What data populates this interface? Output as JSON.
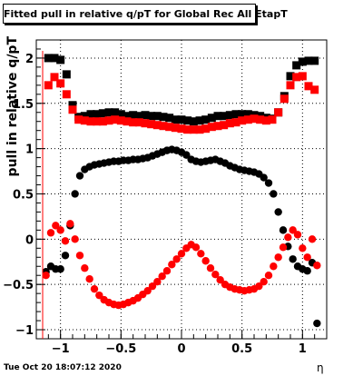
{
  "title": "Fitted pull in relative q/pT  for Global Rec All EtapT",
  "footer": "Tue Oct 20 18:07:12 2020",
  "chart_data": {
    "type": "scatter",
    "xlabel": "η",
    "ylabel": "pull in relative q/pT",
    "xlim": [
      -1.2,
      1.2
    ],
    "ylim": [
      -1.1,
      2.2
    ],
    "x_ticks": [
      -1,
      -0.5,
      0,
      0.5,
      1
    ],
    "x_tick_labels": [
      "−1",
      "−0.5",
      "0",
      "0.5",
      "1"
    ],
    "y_ticks": [
      -1,
      -0.5,
      0,
      0.5,
      1,
      1.5,
      2
    ],
    "y_tick_labels": [
      "−1",
      "−0.5",
      "0",
      "0.5",
      "1",
      "1.5",
      "2"
    ],
    "grid": true,
    "series": [
      {
        "marker": "square",
        "color": "#000000",
        "x": [
          -1.1,
          -1.05,
          -1.0,
          -0.95,
          -0.9,
          -0.85,
          -0.8,
          -0.75,
          -0.7,
          -0.65,
          -0.6,
          -0.55,
          -0.5,
          -0.45,
          -0.4,
          -0.35,
          -0.3,
          -0.25,
          -0.2,
          -0.15,
          -0.1,
          -0.05,
          0.0,
          0.05,
          0.1,
          0.15,
          0.2,
          0.25,
          0.3,
          0.35,
          0.4,
          0.45,
          0.5,
          0.55,
          0.6,
          0.65,
          0.7,
          0.75,
          0.8,
          0.85,
          0.9,
          0.95,
          1.0,
          1.05,
          1.1
        ],
        "y": [
          2.0,
          2.0,
          1.98,
          1.82,
          1.48,
          1.35,
          1.36,
          1.38,
          1.38,
          1.39,
          1.4,
          1.4,
          1.38,
          1.36,
          1.37,
          1.36,
          1.37,
          1.36,
          1.36,
          1.35,
          1.34,
          1.32,
          1.32,
          1.31,
          1.3,
          1.31,
          1.32,
          1.34,
          1.36,
          1.36,
          1.37,
          1.38,
          1.38,
          1.38,
          1.37,
          1.36,
          1.34,
          1.33,
          1.4,
          1.58,
          1.8,
          1.92,
          1.96,
          1.97,
          1.97
        ]
      },
      {
        "marker": "square",
        "color": "#ff0000",
        "x": [
          -1.1,
          -1.05,
          -1.0,
          -0.95,
          -0.9,
          -0.85,
          -0.8,
          -0.75,
          -0.7,
          -0.65,
          -0.6,
          -0.55,
          -0.5,
          -0.45,
          -0.4,
          -0.35,
          -0.3,
          -0.25,
          -0.2,
          -0.15,
          -0.1,
          -0.05,
          0.0,
          0.05,
          0.1,
          0.15,
          0.2,
          0.25,
          0.3,
          0.35,
          0.4,
          0.45,
          0.5,
          0.55,
          0.6,
          0.65,
          0.7,
          0.75,
          0.8,
          0.85,
          0.9,
          0.95,
          1.0,
          1.05,
          1.1
        ],
        "y": [
          1.7,
          1.79,
          1.72,
          1.6,
          1.43,
          1.32,
          1.31,
          1.3,
          1.3,
          1.3,
          1.31,
          1.32,
          1.31,
          1.3,
          1.29,
          1.29,
          1.28,
          1.27,
          1.26,
          1.25,
          1.24,
          1.23,
          1.22,
          1.21,
          1.21,
          1.21,
          1.22,
          1.24,
          1.25,
          1.26,
          1.28,
          1.29,
          1.31,
          1.32,
          1.33,
          1.32,
          1.31,
          1.32,
          1.4,
          1.55,
          1.7,
          1.79,
          1.8,
          1.69,
          1.65
        ]
      },
      {
        "marker": "circle",
        "color": "#000000",
        "x": [
          -1.12,
          -1.08,
          -1.04,
          -1.0,
          -0.96,
          -0.92,
          -0.88,
          -0.84,
          -0.8,
          -0.76,
          -0.72,
          -0.68,
          -0.64,
          -0.6,
          -0.56,
          -0.52,
          -0.48,
          -0.44,
          -0.4,
          -0.36,
          -0.32,
          -0.28,
          -0.24,
          -0.2,
          -0.16,
          -0.12,
          -0.08,
          -0.04,
          0.0,
          0.04,
          0.08,
          0.12,
          0.16,
          0.2,
          0.24,
          0.28,
          0.32,
          0.36,
          0.4,
          0.44,
          0.48,
          0.52,
          0.56,
          0.6,
          0.64,
          0.68,
          0.72,
          0.76,
          0.8,
          0.84,
          0.88,
          0.92,
          0.96,
          1.0,
          1.04,
          1.08,
          1.12
        ],
        "y": [
          -0.36,
          -0.3,
          -0.33,
          -0.33,
          -0.18,
          0.15,
          0.5,
          0.7,
          0.77,
          0.8,
          0.82,
          0.83,
          0.84,
          0.85,
          0.86,
          0.86,
          0.87,
          0.87,
          0.88,
          0.88,
          0.89,
          0.9,
          0.92,
          0.94,
          0.96,
          0.98,
          0.99,
          0.98,
          0.96,
          0.93,
          0.88,
          0.86,
          0.85,
          0.86,
          0.87,
          0.88,
          0.86,
          0.84,
          0.81,
          0.79,
          0.77,
          0.76,
          0.75,
          0.74,
          0.72,
          0.68,
          0.62,
          0.5,
          0.3,
          0.1,
          -0.08,
          -0.22,
          -0.3,
          -0.33,
          -0.35,
          -0.26,
          -0.93
        ]
      },
      {
        "marker": "circle",
        "color": "#ff0000",
        "x": [
          -1.12,
          -1.08,
          -1.04,
          -1.0,
          -0.96,
          -0.92,
          -0.88,
          -0.84,
          -0.8,
          -0.76,
          -0.72,
          -0.68,
          -0.64,
          -0.6,
          -0.56,
          -0.52,
          -0.48,
          -0.44,
          -0.4,
          -0.36,
          -0.32,
          -0.28,
          -0.24,
          -0.2,
          -0.16,
          -0.12,
          -0.08,
          -0.04,
          0.0,
          0.04,
          0.08,
          0.12,
          0.16,
          0.2,
          0.24,
          0.28,
          0.32,
          0.36,
          0.4,
          0.44,
          0.48,
          0.52,
          0.56,
          0.6,
          0.64,
          0.68,
          0.72,
          0.76,
          0.8,
          0.84,
          0.88,
          0.92,
          0.96,
          1.0,
          1.04,
          1.08,
          1.12
        ],
        "y": [
          -0.4,
          0.07,
          0.15,
          0.1,
          -0.02,
          0.17,
          0.0,
          -0.18,
          -0.32,
          -0.44,
          -0.55,
          -0.62,
          -0.67,
          -0.7,
          -0.72,
          -0.73,
          -0.72,
          -0.7,
          -0.68,
          -0.65,
          -0.61,
          -0.57,
          -0.52,
          -0.47,
          -0.41,
          -0.35,
          -0.28,
          -0.22,
          -0.16,
          -0.1,
          -0.06,
          -0.09,
          -0.16,
          -0.24,
          -0.32,
          -0.39,
          -0.45,
          -0.5,
          -0.53,
          -0.55,
          -0.56,
          -0.57,
          -0.56,
          -0.55,
          -0.52,
          -0.47,
          -0.4,
          -0.3,
          -0.2,
          -0.09,
          0.02,
          0.1,
          0.05,
          -0.1,
          -0.2,
          0.0,
          -0.29
        ]
      }
    ]
  }
}
